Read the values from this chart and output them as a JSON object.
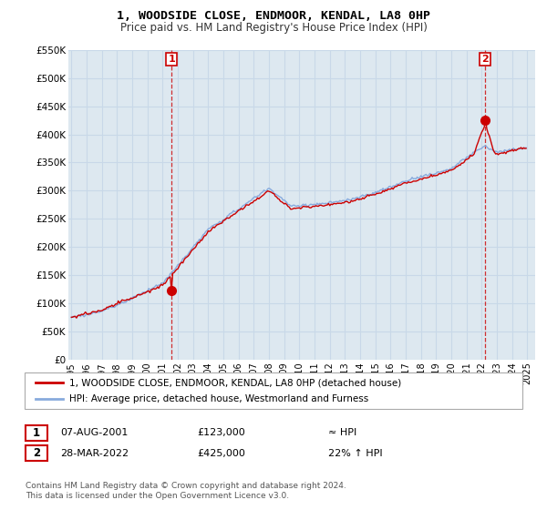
{
  "title": "1, WOODSIDE CLOSE, ENDMOOR, KENDAL, LA8 0HP",
  "subtitle": "Price paid vs. HM Land Registry's House Price Index (HPI)",
  "legend_line1": "1, WOODSIDE CLOSE, ENDMOOR, KENDAL, LA8 0HP (detached house)",
  "legend_line2": "HPI: Average price, detached house, Westmorland and Furness",
  "transaction1_date": "07-AUG-2001",
  "transaction1_price": "£123,000",
  "transaction1_hpi": "≈ HPI",
  "transaction2_date": "28-MAR-2022",
  "transaction2_price": "£425,000",
  "transaction2_hpi": "22% ↑ HPI",
  "footer1": "Contains HM Land Registry data © Crown copyright and database right 2024.",
  "footer2": "This data is licensed under the Open Government Licence v3.0.",
  "price_color": "#cc0000",
  "hpi_color": "#88aadd",
  "dashed_line_color": "#cc0000",
  "plot_bg_color": "#dde8f0",
  "background_color": "#ffffff",
  "grid_color": "#c8d8e8",
  "ylim_min": 0,
  "ylim_max": 550000,
  "yticks": [
    0,
    50000,
    100000,
    150000,
    200000,
    250000,
    300000,
    350000,
    400000,
    450000,
    500000,
    550000
  ],
  "ytick_labels": [
    "£0",
    "£50K",
    "£100K",
    "£150K",
    "£200K",
    "£250K",
    "£300K",
    "£350K",
    "£400K",
    "£450K",
    "£500K",
    "£550K"
  ],
  "transaction1_x": 2001.59,
  "transaction1_y": 123000,
  "transaction2_x": 2022.23,
  "transaction2_y": 425000,
  "xlim_min": 1994.8,
  "xlim_max": 2025.5
}
